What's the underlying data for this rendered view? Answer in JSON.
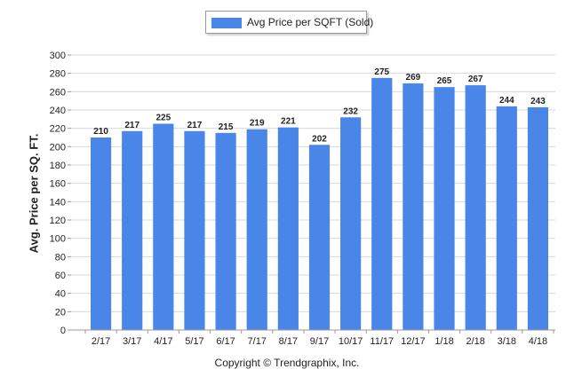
{
  "chart_data": {
    "type": "bar",
    "categories": [
      "2/17",
      "3/17",
      "4/17",
      "5/17",
      "6/17",
      "7/17",
      "8/17",
      "9/17",
      "10/17",
      "11/17",
      "12/17",
      "1/18",
      "2/18",
      "3/18",
      "4/18"
    ],
    "series": [
      {
        "name": "Avg Price per SQFT (Sold)",
        "values": [
          210,
          217,
          225,
          217,
          215,
          219,
          221,
          202,
          232,
          275,
          269,
          265,
          267,
          244,
          243
        ]
      }
    ],
    "ylabel": "Avg. Price per SQ. FT.",
    "ylim": [
      0,
      300
    ],
    "yticks": [
      0,
      20,
      40,
      60,
      80,
      100,
      120,
      140,
      160,
      180,
      200,
      220,
      240,
      260,
      280,
      300
    ],
    "grid": true,
    "legend_position": "top-center",
    "bar_color": "#4a86e8",
    "data_labels": true
  },
  "footer": {
    "copyright": "Copyright © Trendgraphix, Inc."
  }
}
